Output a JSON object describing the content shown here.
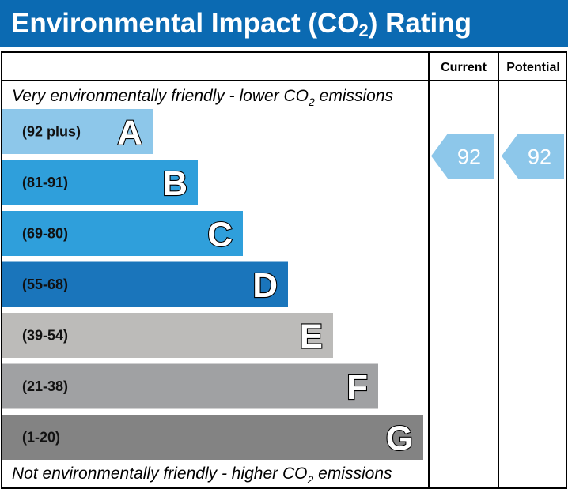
{
  "header": {
    "title_prefix": "Environmental Impact (CO",
    "title_sub": "2",
    "title_suffix": ") Rating"
  },
  "columns": {
    "current": "Current",
    "potential": "Potential"
  },
  "captions": {
    "top_prefix": "Very environmentally friendly - lower CO",
    "top_sub": "2",
    "top_suffix": " emissions",
    "bottom_prefix": "Not environmentally friendly - higher CO",
    "bottom_sub": "2",
    "bottom_suffix": " emissions"
  },
  "colors": {
    "header": "#0b6ab2"
  },
  "chart_data": {
    "type": "bar",
    "bands": [
      {
        "letter": "A",
        "range": "(92 plus)",
        "color": "#8dc7ea"
      },
      {
        "letter": "B",
        "range": "(81-91)",
        "color": "#2f9fdb"
      },
      {
        "letter": "C",
        "range": "(69-80)",
        "color": "#2f9fdb"
      },
      {
        "letter": "D",
        "range": "(55-68)",
        "color": "#1a75bb"
      },
      {
        "letter": "E",
        "range": "(39-54)",
        "color": "#bcbbb9"
      },
      {
        "letter": "F",
        "range": "(21-38)",
        "color": "#a0a1a3"
      },
      {
        "letter": "G",
        "range": "(1-20)",
        "color": "#838383"
      }
    ],
    "current": {
      "value": 92,
      "band": "A",
      "color": "#8dc7ea"
    },
    "potential": {
      "value": 92,
      "band": "A",
      "color": "#8dc7ea"
    }
  }
}
